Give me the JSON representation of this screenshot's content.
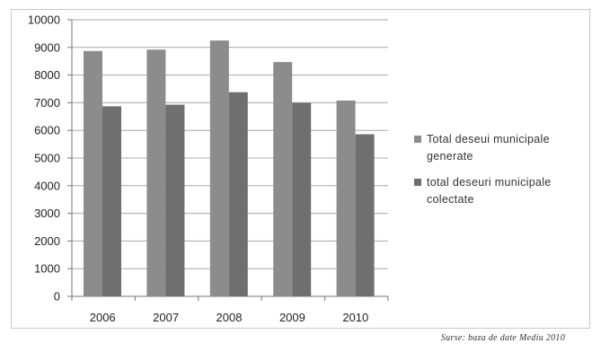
{
  "chart_data": {
    "type": "bar",
    "categories": [
      "2006",
      "2007",
      "2008",
      "2009",
      "2010"
    ],
    "series": [
      {
        "name": "Total deseui municipale generate",
        "legend_lines": [
          "Total deseui municipale",
          "generate"
        ],
        "color": "#8c8c8c",
        "values": [
          8870,
          8920,
          9250,
          8470,
          7080
        ]
      },
      {
        "name": "total deseuri municipale colectate",
        "legend_lines": [
          "total deseuri municipale",
          "colectate"
        ],
        "color": "#6f6f6f",
        "values": [
          6870,
          6930,
          7380,
          7000,
          5860
        ]
      }
    ],
    "ylim": [
      0,
      10000
    ],
    "yticks": [
      "0",
      "1000",
      "2000",
      "3000",
      "4000",
      "5000",
      "6000",
      "7000",
      "8000",
      "9000",
      "10000"
    ],
    "grid": true,
    "legend_position": "right"
  },
  "source": "Surse: baza de date Mediu 2010"
}
